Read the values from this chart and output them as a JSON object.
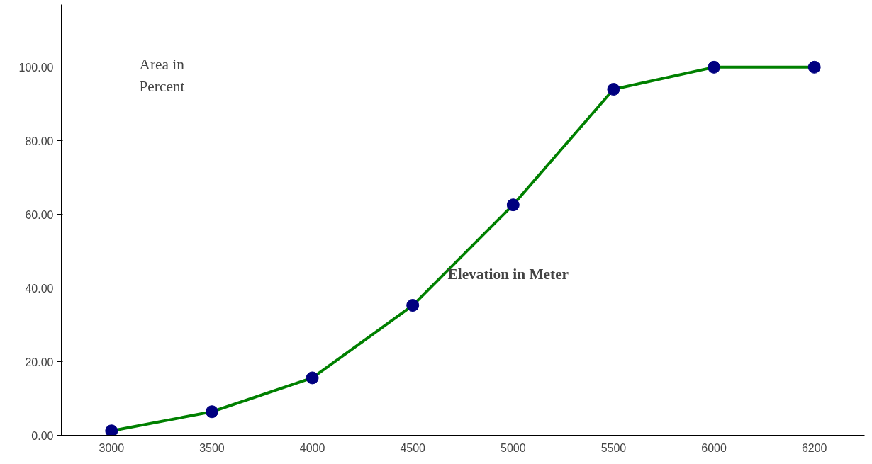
{
  "chart_data": {
    "type": "line",
    "xlabel": "Elevation in Meter",
    "ylabel": "Area in Percent",
    "categories": [
      "3000",
      "3500",
      "4000",
      "4500",
      "5000",
      "5500",
      "6000",
      "6200"
    ],
    "series": [
      {
        "color": "#008000",
        "colors": [
          "#000080",
          "#000080",
          "#000080",
          "#000080",
          "#000080",
          "#000080",
          "#000080",
          "#000080"
        ],
        "values": [
          1.2,
          6.4,
          15.6,
          35.3,
          62.6,
          94.0,
          100,
          100
        ]
      }
    ],
    "marker": "circle",
    "line_style": "solid",
    "ylim": [
      0,
      117
    ],
    "yticks": [
      {
        "value": 0,
        "label": "0.00"
      },
      {
        "value": 20,
        "label": "20.00"
      },
      {
        "value": 40,
        "label": "40.00"
      },
      {
        "value": 60,
        "label": "60.00"
      },
      {
        "value": 80,
        "label": "80.00"
      },
      {
        "value": 100,
        "label": "100.00"
      }
    ],
    "grid": false
  }
}
